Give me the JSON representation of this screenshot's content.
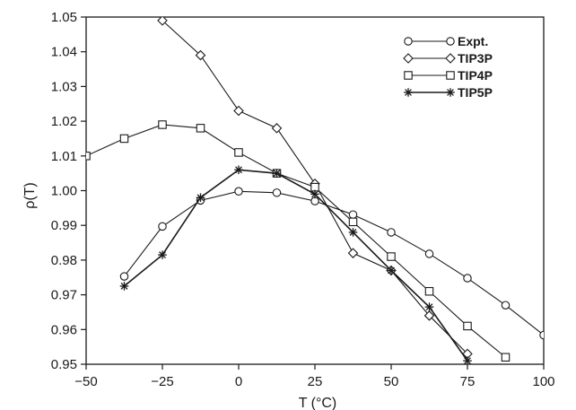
{
  "chart_data": {
    "type": "line",
    "title": "",
    "xlabel": "T (°C)",
    "ylabel": "ρ(T)",
    "xlim": [
      -50,
      100
    ],
    "ylim": [
      0.95,
      1.05
    ],
    "xticks": [
      -50,
      -25,
      0,
      25,
      50,
      75,
      100
    ],
    "yticks": [
      0.95,
      0.96,
      0.97,
      0.98,
      0.99,
      1.0,
      1.01,
      1.02,
      1.03,
      1.04,
      1.05
    ],
    "xtick_labels": [
      "−50",
      "−25",
      "0",
      "25",
      "50",
      "75",
      "100"
    ],
    "ytick_labels": [
      "0.95",
      "0.96",
      "0.97",
      "0.98",
      "0.99",
      "1.00",
      "1.01",
      "1.02",
      "1.03",
      "1.04",
      "1.05"
    ],
    "grid": false,
    "legend_position": "top-right",
    "series": [
      {
        "name": "Expt.",
        "marker": "circle",
        "x": [
          -37.5,
          -25,
          -12.5,
          0,
          12.5,
          25,
          37.5,
          50,
          62.5,
          75,
          87.5,
          100
        ],
        "y": [
          0.9753,
          0.9897,
          0.9972,
          0.9998,
          0.9994,
          0.997,
          0.9931,
          0.988,
          0.9818,
          0.9748,
          0.967,
          0.9584
        ]
      },
      {
        "name": "TIP3P",
        "marker": "diamond",
        "x": [
          -25,
          -12.5,
          0,
          12.5,
          25,
          37.5,
          50,
          62.5,
          75
        ],
        "y": [
          1.049,
          1.039,
          1.023,
          1.018,
          1.002,
          0.982,
          0.977,
          0.964,
          0.953
        ]
      },
      {
        "name": "TIP4P",
        "marker": "square",
        "x": [
          -50,
          -37.5,
          -25,
          -12.5,
          0,
          12.5,
          25,
          37.5,
          50,
          62.5,
          75,
          87.5
        ],
        "y": [
          1.01,
          1.015,
          1.019,
          1.018,
          1.011,
          1.005,
          1.001,
          0.991,
          0.981,
          0.971,
          0.961,
          0.952
        ]
      },
      {
        "name": "TIP5P",
        "marker": "star",
        "x": [
          -37.5,
          -25,
          -12.5,
          0,
          12.5,
          25,
          37.5,
          50,
          62.5,
          75
        ],
        "y": [
          0.9725,
          0.9815,
          0.998,
          1.006,
          1.005,
          0.999,
          0.988,
          0.977,
          0.9665,
          0.951
        ]
      }
    ]
  }
}
